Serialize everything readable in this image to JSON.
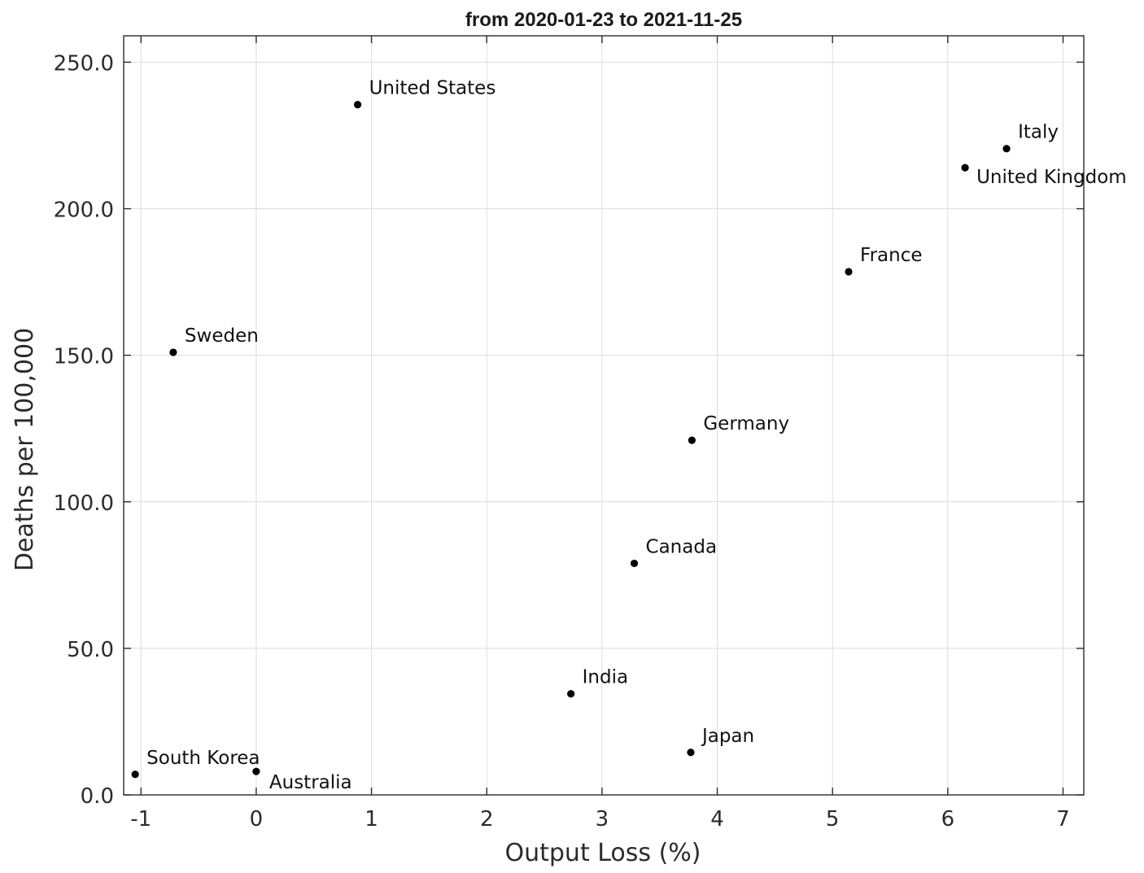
{
  "chart_data": {
    "type": "scatter",
    "title": "from 2020-01-23 to 2021-11-25",
    "xlabel": "Output Loss (%)",
    "ylabel": "Deaths per 100,000",
    "xlim": [
      -1.15,
      7.18
    ],
    "ylim": [
      0,
      259
    ],
    "grid": true,
    "xticks": [
      -1,
      0,
      1,
      2,
      3,
      4,
      5,
      6,
      7
    ],
    "xtick_labels": [
      "-1",
      "0",
      "1",
      "2",
      "3",
      "4",
      "5",
      "6",
      "7"
    ],
    "yticks": [
      0,
      50,
      100,
      150,
      200,
      250
    ],
    "ytick_labels": [
      "0.0",
      "50.0",
      "100.0",
      "150.0",
      "200.0",
      "250.0"
    ],
    "points": [
      {
        "label": "United States",
        "x": 0.88,
        "y": 235.5
      },
      {
        "label": "Italy",
        "x": 6.51,
        "y": 220.5
      },
      {
        "label": "United Kingdom",
        "x": 6.15,
        "y": 214.0
      },
      {
        "label": "France",
        "x": 5.14,
        "y": 178.5
      },
      {
        "label": "Sweden",
        "x": -0.72,
        "y": 151.0
      },
      {
        "label": "Germany",
        "x": 3.78,
        "y": 121.0
      },
      {
        "label": "Canada",
        "x": 3.28,
        "y": 79.0
      },
      {
        "label": "India",
        "x": 2.73,
        "y": 34.5
      },
      {
        "label": "Japan",
        "x": 3.77,
        "y": 14.5
      },
      {
        "label": "South Korea",
        "x": -1.05,
        "y": 7.0
      },
      {
        "label": "Australia",
        "x": 0.0,
        "y": 8.0
      }
    ],
    "marker_color": "#000000"
  }
}
